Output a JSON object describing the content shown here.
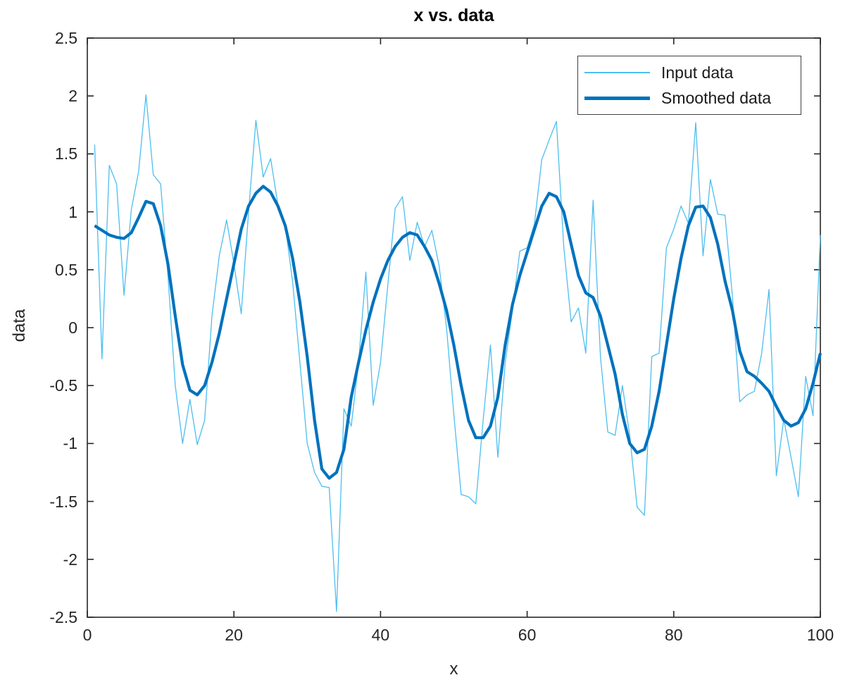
{
  "figure": {
    "title": "x vs. data",
    "xlabel": "x",
    "ylabel": "data",
    "background": "#ffffff",
    "axis_color": "#262626"
  },
  "legend": {
    "position": "northeast",
    "border_color": "#404040",
    "items": [
      {
        "label": "Input data",
        "color": "#4DBEEE",
        "line_width": 1.5
      },
      {
        "label": "Smoothed data",
        "color": "#0072BD",
        "line_width": 5
      }
    ]
  },
  "chart_data": {
    "type": "line",
    "title": "x vs. data",
    "xlabel": "x",
    "ylabel": "data",
    "xlim": [
      0,
      100
    ],
    "ylim": [
      -2.5,
      2.5
    ],
    "grid": false,
    "box": true,
    "tick_direction": "in",
    "legend_position": "northeast",
    "xticks": {
      "values": [
        0,
        20,
        40,
        60,
        80,
        100
      ],
      "labels": [
        "0",
        "20",
        "40",
        "60",
        "80",
        "100"
      ]
    },
    "yticks": {
      "values": [
        -2.5,
        -2,
        -1.5,
        -1,
        -0.5,
        0,
        0.5,
        1,
        1.5,
        2,
        2.5
      ],
      "labels": [
        "-2.5",
        "-2",
        "-1.5",
        "-1",
        "-0.5",
        "0",
        "0.5",
        "1",
        "1.5",
        "2",
        "2.5"
      ]
    },
    "x": [
      1,
      2,
      3,
      4,
      5,
      6,
      7,
      8,
      9,
      10,
      11,
      12,
      13,
      14,
      15,
      16,
      17,
      18,
      19,
      20,
      21,
      22,
      23,
      24,
      25,
      26,
      27,
      28,
      29,
      30,
      31,
      32,
      33,
      34,
      35,
      36,
      37,
      38,
      39,
      40,
      41,
      42,
      43,
      44,
      45,
      46,
      47,
      48,
      49,
      50,
      51,
      52,
      53,
      54,
      55,
      56,
      57,
      58,
      59,
      60,
      61,
      62,
      63,
      64,
      65,
      66,
      67,
      68,
      69,
      70,
      71,
      72,
      73,
      74,
      75,
      76,
      77,
      78,
      79,
      80,
      81,
      82,
      83,
      84,
      85,
      86,
      87,
      88,
      89,
      90,
      91,
      92,
      93,
      94,
      95,
      96,
      97,
      98,
      99,
      100
    ],
    "series": [
      {
        "name": "Input data",
        "color": "#4DBEEE",
        "line_width": 1.3,
        "values": [
          1.58,
          -0.27,
          1.4,
          1.24,
          0.28,
          1.02,
          1.35,
          2.01,
          1.32,
          1.24,
          0.45,
          -0.5,
          -1.0,
          -0.62,
          -1.01,
          -0.8,
          0.1,
          0.62,
          0.93,
          0.55,
          0.12,
          1.0,
          1.79,
          1.3,
          1.46,
          1.06,
          0.88,
          0.4,
          -0.3,
          -1.0,
          -1.25,
          -1.37,
          -1.38,
          -2.45,
          -0.7,
          -0.85,
          -0.3,
          0.48,
          -0.67,
          -0.3,
          0.37,
          1.03,
          1.13,
          0.58,
          0.91,
          0.7,
          0.84,
          0.53,
          0.0,
          -0.75,
          -1.44,
          -1.46,
          -1.52,
          -0.8,
          -0.15,
          -1.12,
          -0.3,
          0.15,
          0.66,
          0.69,
          0.9,
          1.45,
          1.62,
          1.78,
          0.7,
          0.05,
          0.17,
          -0.22,
          1.1,
          -0.25,
          -0.9,
          -0.93,
          -0.5,
          -0.93,
          -1.55,
          -1.62,
          -0.25,
          -0.22,
          0.69,
          0.85,
          1.05,
          0.9,
          1.77,
          0.62,
          1.28,
          0.98,
          0.97,
          0.27,
          -0.64,
          -0.58,
          -0.55,
          -0.22,
          0.33,
          -1.28,
          -0.79,
          -1.12,
          -1.46,
          -0.42,
          -0.76,
          0.8
        ]
      },
      {
        "name": "Smoothed data",
        "color": "#0072BD",
        "line_width": 4.2,
        "values": [
          0.88,
          0.84,
          0.8,
          0.78,
          0.77,
          0.82,
          0.95,
          1.09,
          1.07,
          0.88,
          0.55,
          0.1,
          -0.32,
          -0.54,
          -0.58,
          -0.5,
          -0.3,
          -0.05,
          0.25,
          0.55,
          0.85,
          1.05,
          1.16,
          1.22,
          1.17,
          1.05,
          0.88,
          0.6,
          0.22,
          -0.25,
          -0.8,
          -1.22,
          -1.3,
          -1.25,
          -1.05,
          -0.6,
          -0.3,
          -0.02,
          0.22,
          0.42,
          0.58,
          0.7,
          0.78,
          0.82,
          0.8,
          0.7,
          0.58,
          0.38,
          0.15,
          -0.15,
          -0.5,
          -0.8,
          -0.95,
          -0.95,
          -0.85,
          -0.6,
          -0.15,
          0.2,
          0.45,
          0.65,
          0.85,
          1.05,
          1.16,
          1.13,
          1.0,
          0.72,
          0.45,
          0.3,
          0.26,
          0.1,
          -0.15,
          -0.4,
          -0.75,
          -1.0,
          -1.08,
          -1.05,
          -0.85,
          -0.55,
          -0.15,
          0.25,
          0.6,
          0.88,
          1.04,
          1.05,
          0.95,
          0.72,
          0.4,
          0.15,
          -0.2,
          -0.38,
          -0.42,
          -0.48,
          -0.55,
          -0.68,
          -0.8,
          -0.85,
          -0.82,
          -0.7,
          -0.48,
          -0.22
        ]
      }
    ]
  }
}
